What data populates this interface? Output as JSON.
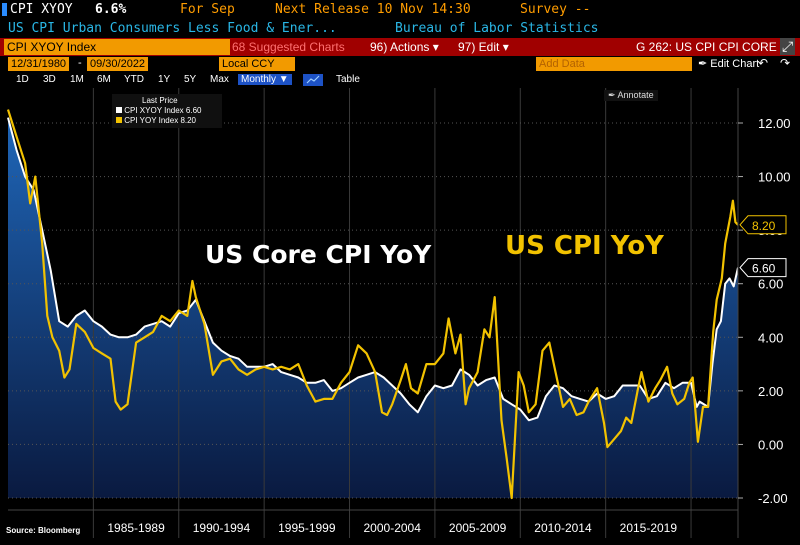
{
  "header": {
    "ticker": "CPI XYOY",
    "value": "6.6%",
    "for_label": "For Sep",
    "next_release": "Next Release 10 Nov 14:30",
    "survey": "Survey --",
    "description": "US CPI Urban Consumers Less Food & Ener...",
    "source_agency": "Bureau of Labor Statistics"
  },
  "toolbar": {
    "index_name": "CPI XYOY Index",
    "suggested": "68 Suggested Charts",
    "actions": "96) Actions ▾",
    "edit": "97) Edit ▾",
    "page_title": "G 262: US CPI CPI CORE",
    "close": "⤢"
  },
  "range": {
    "start": "12/31/1980",
    "end": "09/30/2022",
    "currency": "Local CCY",
    "frequency": "Monthly ▼",
    "table": "Table",
    "add_data": "Add Data",
    "edit_chart": "✒ Edit Chart",
    "undo": "↶",
    "redo": "↷"
  },
  "periods": [
    "1D",
    "3D",
    "1M",
    "6M",
    "YTD",
    "1Y",
    "5Y",
    "Max"
  ],
  "annotate": "✒ Annotate",
  "legend": {
    "heading": "Last Price",
    "items": [
      {
        "label": "CPI XYOY Index",
        "value": "6.60",
        "color": "#ffffff"
      },
      {
        "label": "CPI YOY Index",
        "value": "8.20",
        "color": "#f2c200"
      }
    ]
  },
  "source": "Source: Bloomberg",
  "chart_data": {
    "type": "line",
    "x_unit": "year",
    "xlim": [
      1980.0,
      2022.75
    ],
    "ylim": [
      -2.0,
      12.0
    ],
    "yticks": [
      "12.00",
      "10.00",
      "8.00",
      "6.00",
      "4.00",
      "2.00",
      "0.00",
      "-2.00"
    ],
    "ytick_values": [
      12,
      10,
      8,
      6,
      4,
      2,
      0,
      -2
    ],
    "xtick_labels": [
      "1985-1989",
      "1990-1994",
      "1995-1999",
      "2000-2004",
      "2005-2009",
      "2010-2014",
      "2015-2019"
    ],
    "xtick_ranges": [
      [
        1985,
        1990
      ],
      [
        1990,
        1995
      ],
      [
        1995,
        2000
      ],
      [
        2000,
        2005
      ],
      [
        2005,
        2010
      ],
      [
        2010,
        2015
      ],
      [
        2015,
        2020
      ]
    ],
    "annotations": [
      {
        "text": "US Core CPI YoY",
        "color": "#ffffff"
      },
      {
        "text": "US CPI YoY",
        "color": "#f2c200"
      }
    ],
    "last_labels": [
      {
        "text": "8.20",
        "value": 8.2,
        "color": "#f2c200"
      },
      {
        "text": "6.60",
        "value": 6.6,
        "color": "#ffffff"
      }
    ],
    "series": [
      {
        "name": "CPI XYOY Index",
        "color": "#ffffff",
        "area": true,
        "points": [
          [
            1980.0,
            12.2
          ],
          [
            1980.5,
            11.0
          ],
          [
            1981.0,
            10.0
          ],
          [
            1981.5,
            9.5
          ],
          [
            1982.0,
            8.0
          ],
          [
            1982.5,
            6.5
          ],
          [
            1983.0,
            4.6
          ],
          [
            1983.5,
            4.4
          ],
          [
            1984.0,
            4.8
          ],
          [
            1984.5,
            5.0
          ],
          [
            1985.0,
            4.6
          ],
          [
            1985.5,
            4.4
          ],
          [
            1986.0,
            4.1
          ],
          [
            1986.5,
            4.0
          ],
          [
            1987.0,
            4.0
          ],
          [
            1987.5,
            4.1
          ],
          [
            1988.0,
            4.4
          ],
          [
            1988.5,
            4.5
          ],
          [
            1989.0,
            4.6
          ],
          [
            1989.5,
            4.4
          ],
          [
            1990.0,
            4.9
          ],
          [
            1990.5,
            5.0
          ],
          [
            1991.0,
            5.4
          ],
          [
            1991.5,
            4.6
          ],
          [
            1992.0,
            3.8
          ],
          [
            1992.5,
            3.5
          ],
          [
            1993.0,
            3.3
          ],
          [
            1993.5,
            3.2
          ],
          [
            1994.0,
            2.9
          ],
          [
            1994.5,
            2.9
          ],
          [
            1995.0,
            2.9
          ],
          [
            1995.5,
            3.0
          ],
          [
            1996.0,
            2.7
          ],
          [
            1996.5,
            2.6
          ],
          [
            1997.0,
            2.5
          ],
          [
            1997.5,
            2.3
          ],
          [
            1998.0,
            2.3
          ],
          [
            1998.5,
            2.4
          ],
          [
            1999.0,
            2.0
          ],
          [
            1999.5,
            2.1
          ],
          [
            2000.0,
            2.3
          ],
          [
            2000.5,
            2.5
          ],
          [
            2001.0,
            2.6
          ],
          [
            2001.5,
            2.7
          ],
          [
            2002.0,
            2.5
          ],
          [
            2002.5,
            2.2
          ],
          [
            2003.0,
            1.9
          ],
          [
            2003.5,
            1.5
          ],
          [
            2004.0,
            1.2
          ],
          [
            2004.5,
            1.8
          ],
          [
            2005.0,
            2.2
          ],
          [
            2005.5,
            2.1
          ],
          [
            2006.0,
            2.2
          ],
          [
            2006.5,
            2.8
          ],
          [
            2007.0,
            2.6
          ],
          [
            2007.5,
            2.2
          ],
          [
            2008.0,
            2.4
          ],
          [
            2008.5,
            2.5
          ],
          [
            2009.0,
            1.7
          ],
          [
            2009.5,
            1.5
          ],
          [
            2010.0,
            1.3
          ],
          [
            2010.5,
            0.9
          ],
          [
            2011.0,
            1.0
          ],
          [
            2011.5,
            1.8
          ],
          [
            2012.0,
            2.2
          ],
          [
            2012.5,
            2.1
          ],
          [
            2013.0,
            1.8
          ],
          [
            2013.5,
            1.7
          ],
          [
            2014.0,
            1.6
          ],
          [
            2014.5,
            1.9
          ],
          [
            2015.0,
            1.7
          ],
          [
            2015.5,
            1.8
          ],
          [
            2016.0,
            2.2
          ],
          [
            2016.5,
            2.2
          ],
          [
            2017.0,
            2.2
          ],
          [
            2017.5,
            1.7
          ],
          [
            2018.0,
            1.8
          ],
          [
            2018.5,
            2.3
          ],
          [
            2019.0,
            2.1
          ],
          [
            2019.5,
            2.3
          ],
          [
            2020.0,
            2.3
          ],
          [
            2020.33,
            1.4
          ],
          [
            2020.5,
            1.6
          ],
          [
            2021.0,
            1.4
          ],
          [
            2021.25,
            3.0
          ],
          [
            2021.5,
            4.3
          ],
          [
            2021.75,
            4.6
          ],
          [
            2022.0,
            6.0
          ],
          [
            2022.25,
            6.2
          ],
          [
            2022.5,
            5.9
          ],
          [
            2022.75,
            6.6
          ]
        ]
      },
      {
        "name": "CPI YOY Index",
        "color": "#f2c200",
        "area": false,
        "points": [
          [
            1980.0,
            12.5
          ],
          [
            1980.5,
            11.5
          ],
          [
            1981.0,
            10.5
          ],
          [
            1981.3,
            9.0
          ],
          [
            1981.6,
            10.0
          ],
          [
            1982.0,
            7.5
          ],
          [
            1982.3,
            4.8
          ],
          [
            1982.6,
            4.0
          ],
          [
            1983.0,
            3.5
          ],
          [
            1983.3,
            2.5
          ],
          [
            1983.6,
            2.8
          ],
          [
            1984.0,
            4.5
          ],
          [
            1984.5,
            4.2
          ],
          [
            1985.0,
            3.6
          ],
          [
            1985.5,
            3.4
          ],
          [
            1986.0,
            3.2
          ],
          [
            1986.3,
            1.6
          ],
          [
            1986.6,
            1.3
          ],
          [
            1987.0,
            1.5
          ],
          [
            1987.5,
            3.8
          ],
          [
            1988.0,
            4.0
          ],
          [
            1988.5,
            4.2
          ],
          [
            1989.0,
            4.8
          ],
          [
            1989.5,
            4.6
          ],
          [
            1990.0,
            5.0
          ],
          [
            1990.5,
            4.8
          ],
          [
            1990.8,
            6.1
          ],
          [
            1991.0,
            5.5
          ],
          [
            1991.5,
            4.5
          ],
          [
            1992.0,
            2.6
          ],
          [
            1992.5,
            3.1
          ],
          [
            1993.0,
            3.2
          ],
          [
            1993.5,
            2.8
          ],
          [
            1994.0,
            2.6
          ],
          [
            1994.5,
            2.8
          ],
          [
            1995.0,
            2.9
          ],
          [
            1995.5,
            2.8
          ],
          [
            1996.0,
            2.9
          ],
          [
            1996.5,
            2.8
          ],
          [
            1997.0,
            3.0
          ],
          [
            1997.5,
            2.2
          ],
          [
            1998.0,
            1.6
          ],
          [
            1998.5,
            1.7
          ],
          [
            1999.0,
            1.7
          ],
          [
            1999.5,
            2.3
          ],
          [
            2000.0,
            2.7
          ],
          [
            2000.5,
            3.7
          ],
          [
            2001.0,
            3.4
          ],
          [
            2001.5,
            2.7
          ],
          [
            2001.9,
            1.2
          ],
          [
            2002.2,
            1.1
          ],
          [
            2002.5,
            1.5
          ],
          [
            2003.0,
            2.4
          ],
          [
            2003.3,
            3.0
          ],
          [
            2003.6,
            2.1
          ],
          [
            2004.0,
            1.9
          ],
          [
            2004.5,
            3.0
          ],
          [
            2005.0,
            3.0
          ],
          [
            2005.5,
            3.4
          ],
          [
            2005.8,
            4.7
          ],
          [
            2006.2,
            3.4
          ],
          [
            2006.5,
            4.1
          ],
          [
            2006.8,
            1.5
          ],
          [
            2007.0,
            2.1
          ],
          [
            2007.5,
            2.7
          ],
          [
            2007.9,
            4.3
          ],
          [
            2008.2,
            4.0
          ],
          [
            2008.5,
            5.5
          ],
          [
            2008.9,
            0.9
          ],
          [
            2009.2,
            -0.5
          ],
          [
            2009.5,
            -2.0
          ],
          [
            2009.9,
            2.7
          ],
          [
            2010.2,
            2.2
          ],
          [
            2010.5,
            1.2
          ],
          [
            2010.9,
            1.5
          ],
          [
            2011.3,
            3.5
          ],
          [
            2011.7,
            3.8
          ],
          [
            2012.0,
            2.9
          ],
          [
            2012.5,
            1.4
          ],
          [
            2012.9,
            1.7
          ],
          [
            2013.3,
            1.1
          ],
          [
            2013.7,
            1.2
          ],
          [
            2014.0,
            1.6
          ],
          [
            2014.5,
            2.1
          ],
          [
            2014.9,
            0.8
          ],
          [
            2015.1,
            -0.1
          ],
          [
            2015.5,
            0.2
          ],
          [
            2015.9,
            0.5
          ],
          [
            2016.2,
            1.0
          ],
          [
            2016.5,
            0.8
          ],
          [
            2016.9,
            2.1
          ],
          [
            2017.1,
            2.7
          ],
          [
            2017.5,
            1.6
          ],
          [
            2017.9,
            2.1
          ],
          [
            2018.2,
            2.4
          ],
          [
            2018.6,
            2.9
          ],
          [
            2018.9,
            1.9
          ],
          [
            2019.2,
            1.5
          ],
          [
            2019.6,
            1.7
          ],
          [
            2019.9,
            2.3
          ],
          [
            2020.1,
            2.5
          ],
          [
            2020.4,
            0.1
          ],
          [
            2020.7,
            1.4
          ],
          [
            2021.0,
            1.4
          ],
          [
            2021.3,
            4.2
          ],
          [
            2021.5,
            5.4
          ],
          [
            2021.8,
            6.2
          ],
          [
            2022.0,
            7.5
          ],
          [
            2022.3,
            8.5
          ],
          [
            2022.45,
            9.1
          ],
          [
            2022.6,
            8.3
          ],
          [
            2022.75,
            8.2
          ]
        ]
      }
    ]
  }
}
